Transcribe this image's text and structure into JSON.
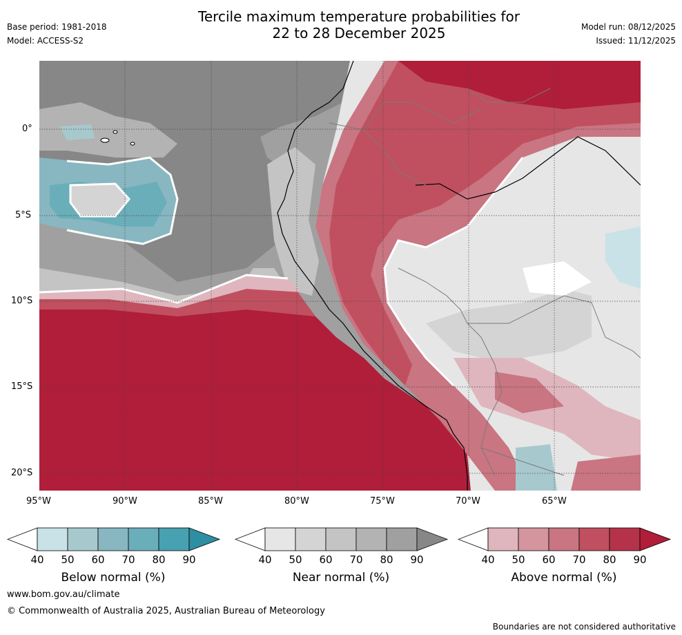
{
  "title": {
    "line1": "Tercile maximum temperature probabilities for",
    "line2": "22 to 28 December 2025"
  },
  "meta_left": {
    "base_period": "Base period: 1981-2018",
    "model": "Model: ACCESS-S2"
  },
  "meta_right": {
    "model_run": "Model run: 08/12/2025",
    "issued": "Issued: 11/12/2025"
  },
  "map": {
    "lat_labels": [
      "0°",
      "5°S",
      "10°S",
      "15°S",
      "20°S"
    ],
    "lon_labels": [
      "95°W",
      "90°W",
      "85°W",
      "80°W",
      "75°W",
      "70°W",
      "65°W"
    ]
  },
  "colorbars": [
    {
      "name": "below",
      "label": "Below normal (%)",
      "ticks": [
        "40",
        "50",
        "60",
        "70",
        "80",
        "90"
      ],
      "colors": [
        "#ffffff",
        "#c9e2e8",
        "#a7c9ce",
        "#88b7c1",
        "#6aaeb9",
        "#48a1b0",
        "#2e8ea2"
      ]
    },
    {
      "name": "near",
      "label": "Near normal (%)",
      "ticks": [
        "40",
        "50",
        "60",
        "70",
        "80",
        "90"
      ],
      "colors": [
        "#ffffff",
        "#e6e6e6",
        "#d4d4d4",
        "#c4c4c4",
        "#b3b3b3",
        "#a0a0a0",
        "#878787"
      ]
    },
    {
      "name": "above",
      "label": "Above normal (%)",
      "ticks": [
        "40",
        "50",
        "60",
        "70",
        "80",
        "90"
      ],
      "colors": [
        "#ffffff",
        "#dfb6bd",
        "#d4959e",
        "#c97582",
        "#c0505f",
        "#b5334a",
        "#b01e3a"
      ]
    }
  ],
  "footer": {
    "url": "www.bom.gov.au/climate",
    "copyright": "© Commonwealth of Australia 2025, Australian Bureau of Meteorology",
    "disclaimer": "Boundaries are not considered authoritative"
  }
}
